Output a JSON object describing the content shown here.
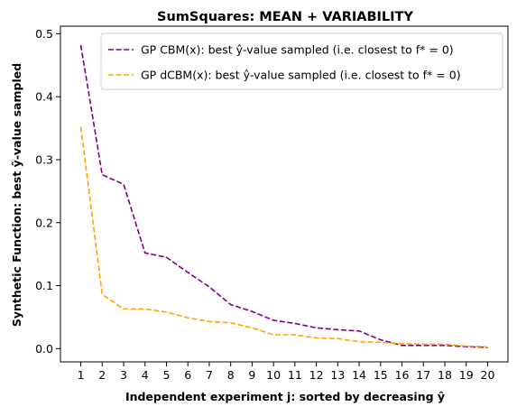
{
  "chart_data": {
    "type": "line",
    "title": "SumSquares: MEAN + VARIABILITY",
    "xlabel": "Independent experiment j: sorted by decreasing ŷ",
    "ylabel": "Synthetic Function: best ŷ-value sampled",
    "x": [
      1,
      2,
      3,
      4,
      5,
      6,
      7,
      8,
      9,
      10,
      11,
      12,
      13,
      14,
      15,
      16,
      17,
      18,
      19,
      20
    ],
    "x_ticks": [
      "1",
      "2",
      "3",
      "4",
      "5",
      "6",
      "7",
      "8",
      "9",
      "10",
      "11",
      "12",
      "13",
      "14",
      "15",
      "16",
      "17",
      "18",
      "19",
      "20"
    ],
    "y_ticks": [
      "0.0",
      "0.1",
      "0.2",
      "0.3",
      "0.4",
      "0.5"
    ],
    "ylim": [
      -0.021,
      0.512
    ],
    "xlim": [
      0.05,
      20.95
    ],
    "grid": false,
    "legend_position": "top-right",
    "series": [
      {
        "name": "GP CBM(x):   best ŷ-value sampled (i.e. closest to f* = 0)",
        "color": "#800080",
        "style": "dashed",
        "values": [
          0.482,
          0.276,
          0.261,
          0.152,
          0.145,
          0.121,
          0.098,
          0.07,
          0.059,
          0.045,
          0.04,
          0.033,
          0.03,
          0.028,
          0.014,
          0.005,
          0.005,
          0.005,
          0.003,
          0.002
        ]
      },
      {
        "name": "GP dCBM(x): best ŷ-value sampled (i.e. closest to f* = 0)",
        "color": "#FFA500",
        "style": "dashed",
        "values": [
          0.352,
          0.086,
          0.063,
          0.063,
          0.058,
          0.049,
          0.043,
          0.041,
          0.033,
          0.022,
          0.022,
          0.017,
          0.016,
          0.011,
          0.01,
          0.008,
          0.007,
          0.007,
          0.004,
          0.003
        ]
      }
    ]
  }
}
